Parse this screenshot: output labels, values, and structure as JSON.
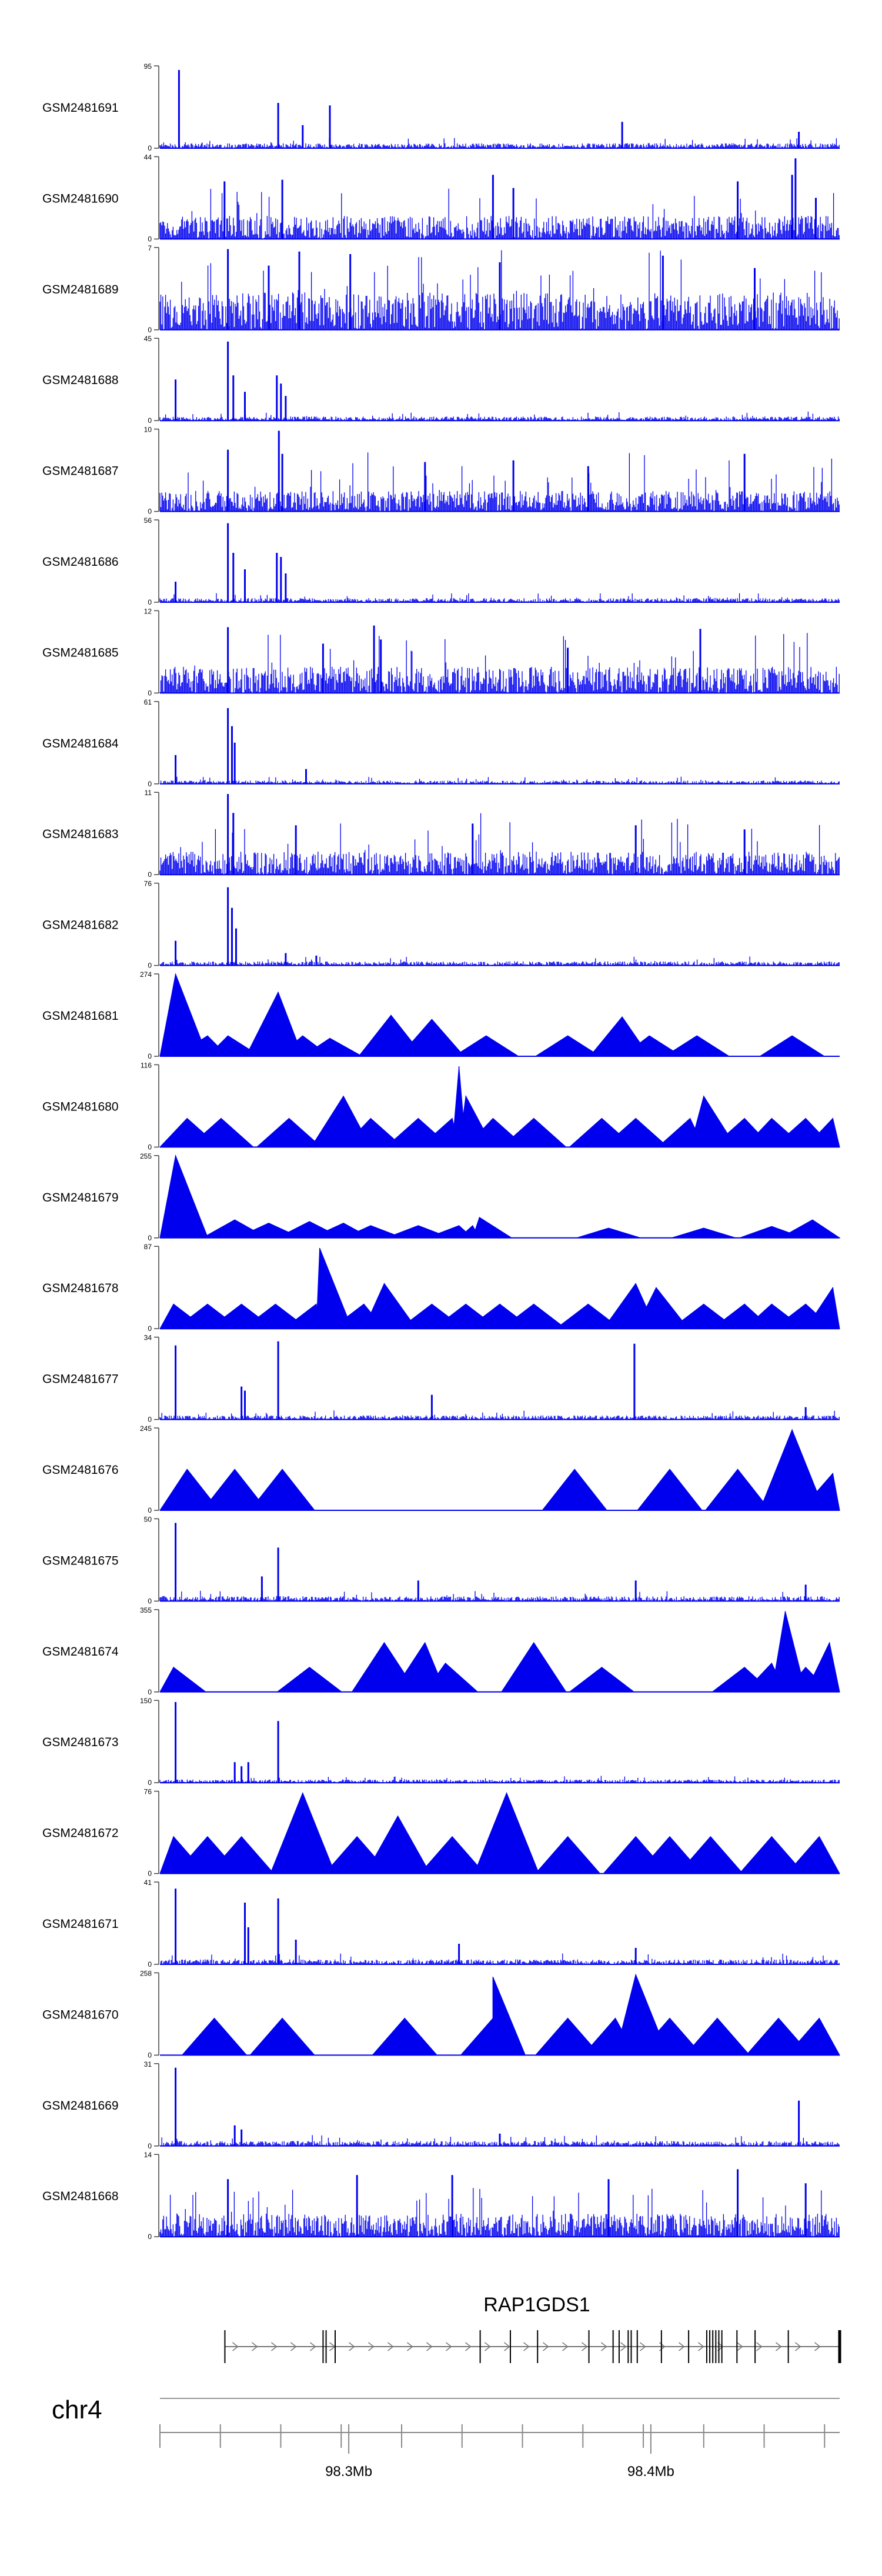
{
  "chart_data": {
    "type": "area",
    "title": "",
    "xlabel": "",
    "chromosome": "chr4",
    "gene": {
      "name": "RAP1GDS1",
      "strand": "+",
      "start_mb": 98.259,
      "end_mb": 98.463,
      "exons_mb": [
        98.259,
        98.2915,
        98.2925,
        98.2955,
        98.3435,
        98.3535,
        98.3625,
        98.3795,
        98.3875,
        98.3895,
        98.3925,
        98.3935,
        98.3955,
        98.4035,
        98.4125,
        98.4185,
        98.4195,
        98.4205,
        98.4215,
        98.4225,
        98.4235,
        98.4285,
        98.4345,
        98.4455,
        98.4625
      ]
    },
    "x_axis": {
      "range_mb": [
        98.2375,
        98.4625
      ],
      "ticks_mb": [
        98.2375,
        98.2575,
        98.2775,
        98.2975,
        98.3175,
        98.3375,
        98.3575,
        98.3775,
        98.3975,
        98.4175,
        98.4375,
        98.4575
      ],
      "labeled_ticks": [
        {
          "value": 98.3,
          "label": "98.3Mb"
        },
        {
          "value": 98.4,
          "label": "98.4Mb"
        }
      ]
    },
    "tracks": [
      {
        "name": "GSM2481691",
        "ylim": [
          0,
          95
        ],
        "ytick_labels": [
          "95",
          "0"
        ],
        "style": "dense",
        "density": 0.06,
        "peaks": [
          [
            0.028,
            0.95
          ],
          [
            0.174,
            0.55
          ],
          [
            0.21,
            0.28
          ],
          [
            0.25,
            0.52
          ],
          [
            0.68,
            0.32
          ],
          [
            0.94,
            0.2
          ]
        ]
      },
      {
        "name": "GSM2481690",
        "ylim": [
          0,
          44
        ],
        "ytick_labels": [
          "44",
          "0"
        ],
        "style": "sparse",
        "density": 0.28,
        "peaks": [
          [
            0.095,
            0.7
          ],
          [
            0.18,
            0.72
          ],
          [
            0.49,
            0.78
          ],
          [
            0.52,
            0.62
          ],
          [
            0.85,
            0.7
          ],
          [
            0.93,
            0.78
          ],
          [
            0.935,
            0.98
          ],
          [
            0.965,
            0.5
          ]
        ]
      },
      {
        "name": "GSM2481689",
        "ylim": [
          0,
          7
        ],
        "ytick_labels": [
          "7",
          "0"
        ],
        "style": "noisy",
        "density": 0.45,
        "peaks": [
          [
            0.1,
            0.98
          ],
          [
            0.205,
            0.95
          ],
          [
            0.28,
            0.92
          ],
          [
            0.16,
            0.78
          ],
          [
            0.5,
            0.82
          ],
          [
            0.74,
            0.9
          ],
          [
            0.875,
            0.75
          ]
        ]
      },
      {
        "name": "GSM2481688",
        "ylim": [
          0,
          45
        ],
        "ytick_labels": [
          "45",
          "0"
        ],
        "style": "dense",
        "density": 0.05,
        "peaks": [
          [
            0.023,
            0.5
          ],
          [
            0.1,
            0.96
          ],
          [
            0.108,
            0.55
          ],
          [
            0.125,
            0.35
          ],
          [
            0.172,
            0.55
          ],
          [
            0.178,
            0.45
          ],
          [
            0.185,
            0.3
          ]
        ]
      },
      {
        "name": "GSM2481687",
        "ylim": [
          0,
          10
        ],
        "ytick_labels": [
          "10",
          "0"
        ],
        "style": "noisy",
        "density": 0.25,
        "peaks": [
          [
            0.1,
            0.75
          ],
          [
            0.175,
            0.98
          ],
          [
            0.18,
            0.7
          ],
          [
            0.39,
            0.6
          ],
          [
            0.52,
            0.62
          ],
          [
            0.63,
            0.55
          ],
          [
            0.86,
            0.7
          ]
        ]
      },
      {
        "name": "GSM2481686",
        "ylim": [
          0,
          56
        ],
        "ytick_labels": [
          "56",
          "0"
        ],
        "style": "dense",
        "density": 0.05,
        "peaks": [
          [
            0.023,
            0.25
          ],
          [
            0.1,
            0.96
          ],
          [
            0.108,
            0.6
          ],
          [
            0.125,
            0.4
          ],
          [
            0.172,
            0.6
          ],
          [
            0.178,
            0.55
          ],
          [
            0.185,
            0.35
          ]
        ]
      },
      {
        "name": "GSM2481685",
        "ylim": [
          0,
          12
        ],
        "ytick_labels": [
          "12",
          "0"
        ],
        "style": "noisy",
        "density": 0.32,
        "peaks": [
          [
            0.1,
            0.8
          ],
          [
            0.315,
            0.82
          ],
          [
            0.325,
            0.65
          ],
          [
            0.795,
            0.78
          ],
          [
            0.6,
            0.55
          ],
          [
            0.24,
            0.6
          ]
        ]
      },
      {
        "name": "GSM2481684",
        "ylim": [
          0,
          61
        ],
        "ytick_labels": [
          "61",
          "0"
        ],
        "style": "dense",
        "density": 0.04,
        "peaks": [
          [
            0.023,
            0.35
          ],
          [
            0.1,
            0.92
          ],
          [
            0.106,
            0.7
          ],
          [
            0.11,
            0.5
          ],
          [
            0.215,
            0.18
          ]
        ]
      },
      {
        "name": "GSM2481683",
        "ylim": [
          0,
          11
        ],
        "ytick_labels": [
          "11",
          "0"
        ],
        "style": "noisy",
        "density": 0.28,
        "peaks": [
          [
            0.1,
            0.98
          ],
          [
            0.108,
            0.75
          ],
          [
            0.2,
            0.6
          ],
          [
            0.46,
            0.62
          ],
          [
            0.7,
            0.6
          ],
          [
            0.86,
            0.55
          ]
        ]
      },
      {
        "name": "GSM2481682",
        "ylim": [
          0,
          76
        ],
        "ytick_labels": [
          "76",
          "0"
        ],
        "style": "dense",
        "density": 0.05,
        "peaks": [
          [
            0.023,
            0.3
          ],
          [
            0.1,
            0.95
          ],
          [
            0.106,
            0.7
          ],
          [
            0.112,
            0.45
          ],
          [
            0.185,
            0.15
          ],
          [
            0.23,
            0.12
          ]
        ]
      },
      {
        "name": "GSM2481681",
        "ylim": [
          0,
          274
        ],
        "ytick_labels": [
          "274",
          "0"
        ],
        "style": "triangles",
        "density": 0,
        "peaks": [
          [
            0.023,
            1.0
          ],
          [
            0.174,
            0.78
          ],
          [
            0.07,
            0.25
          ],
          [
            0.1,
            0.25
          ],
          [
            0.21,
            0.25
          ],
          [
            0.25,
            0.22
          ],
          [
            0.34,
            0.5
          ],
          [
            0.4,
            0.45
          ],
          [
            0.48,
            0.25
          ],
          [
            0.6,
            0.25
          ],
          [
            0.68,
            0.48
          ],
          [
            0.72,
            0.25
          ],
          [
            0.79,
            0.25
          ],
          [
            0.93,
            0.25
          ]
        ]
      },
      {
        "name": "GSM2481680",
        "ylim": [
          0,
          116
        ],
        "ytick_labels": [
          "116",
          "0"
        ],
        "style": "triangles",
        "density": 0,
        "peaks": [
          [
            0.04,
            0.35
          ],
          [
            0.09,
            0.35
          ],
          [
            0.19,
            0.35
          ],
          [
            0.27,
            0.62
          ],
          [
            0.31,
            0.35
          ],
          [
            0.38,
            0.35
          ],
          [
            0.43,
            0.35
          ],
          [
            0.45,
            0.62
          ],
          [
            0.49,
            0.35
          ],
          [
            0.55,
            0.35
          ],
          [
            0.65,
            0.35
          ],
          [
            0.7,
            0.35
          ],
          [
            0.78,
            0.35
          ],
          [
            0.8,
            0.62
          ],
          [
            0.86,
            0.35
          ],
          [
            0.9,
            0.35
          ],
          [
            0.95,
            0.35
          ],
          [
            0.99,
            0.35
          ],
          [
            0.44,
            0.98
          ]
        ]
      },
      {
        "name": "GSM2481679",
        "ylim": [
          0,
          255
        ],
        "ytick_labels": [
          "255",
          "0"
        ],
        "style": "triangles",
        "density": 0,
        "peaks": [
          [
            0.023,
            1.0
          ],
          [
            0.11,
            0.22
          ],
          [
            0.16,
            0.18
          ],
          [
            0.22,
            0.2
          ],
          [
            0.27,
            0.18
          ],
          [
            0.31,
            0.15
          ],
          [
            0.38,
            0.15
          ],
          [
            0.44,
            0.15
          ],
          [
            0.46,
            0.15
          ],
          [
            0.47,
            0.25
          ],
          [
            0.66,
            0.12
          ],
          [
            0.8,
            0.12
          ],
          [
            0.9,
            0.14
          ],
          [
            0.96,
            0.22
          ]
        ]
      },
      {
        "name": "GSM2481678",
        "ylim": [
          0,
          87
        ],
        "ytick_labels": [
          "87",
          "0"
        ],
        "style": "triangles",
        "density": 0,
        "peaks": [
          [
            0.02,
            0.3
          ],
          [
            0.07,
            0.3
          ],
          [
            0.12,
            0.3
          ],
          [
            0.17,
            0.3
          ],
          [
            0.23,
            0.3
          ],
          [
            0.235,
            0.98
          ],
          [
            0.3,
            0.3
          ],
          [
            0.33,
            0.55
          ],
          [
            0.4,
            0.3
          ],
          [
            0.45,
            0.3
          ],
          [
            0.5,
            0.3
          ],
          [
            0.55,
            0.3
          ],
          [
            0.63,
            0.3
          ],
          [
            0.7,
            0.55
          ],
          [
            0.73,
            0.5
          ],
          [
            0.8,
            0.3
          ],
          [
            0.86,
            0.3
          ],
          [
            0.9,
            0.3
          ],
          [
            0.95,
            0.3
          ],
          [
            0.99,
            0.5
          ]
        ]
      },
      {
        "name": "GSM2481677",
        "ylim": [
          0,
          34
        ],
        "ytick_labels": [
          "34",
          "0"
        ],
        "style": "dense",
        "density": 0.05,
        "peaks": [
          [
            0.023,
            0.9
          ],
          [
            0.12,
            0.4
          ],
          [
            0.125,
            0.35
          ],
          [
            0.174,
            0.95
          ],
          [
            0.4,
            0.3
          ],
          [
            0.698,
            0.92
          ],
          [
            0.95,
            0.15
          ]
        ]
      },
      {
        "name": "GSM2481676",
        "ylim": [
          0,
          245
        ],
        "ytick_labels": [
          "245",
          "0"
        ],
        "style": "triangles",
        "density": 0,
        "peaks": [
          [
            0.04,
            0.5
          ],
          [
            0.11,
            0.5
          ],
          [
            0.18,
            0.5
          ],
          [
            0.61,
            0.5
          ],
          [
            0.75,
            0.5
          ],
          [
            0.85,
            0.5
          ],
          [
            0.93,
            0.98
          ],
          [
            0.99,
            0.45
          ]
        ]
      },
      {
        "name": "GSM2481675",
        "ylim": [
          0,
          50
        ],
        "ytick_labels": [
          "50",
          "0"
        ],
        "style": "dense",
        "density": 0.06,
        "peaks": [
          [
            0.023,
            0.95
          ],
          [
            0.174,
            0.65
          ],
          [
            0.15,
            0.3
          ],
          [
            0.38,
            0.25
          ],
          [
            0.7,
            0.25
          ],
          [
            0.95,
            0.2
          ]
        ]
      },
      {
        "name": "GSM2481674",
        "ylim": [
          0,
          355
        ],
        "ytick_labels": [
          "355",
          "0"
        ],
        "style": "triangles",
        "density": 0,
        "peaks": [
          [
            0.02,
            0.3
          ],
          [
            0.22,
            0.3
          ],
          [
            0.33,
            0.6
          ],
          [
            0.39,
            0.6
          ],
          [
            0.42,
            0.35
          ],
          [
            0.55,
            0.6
          ],
          [
            0.65,
            0.3
          ],
          [
            0.86,
            0.3
          ],
          [
            0.9,
            0.35
          ],
          [
            0.92,
            0.98
          ],
          [
            0.95,
            0.3
          ],
          [
            0.985,
            0.6
          ]
        ]
      },
      {
        "name": "GSM2481673",
        "ylim": [
          0,
          150
        ],
        "ytick_labels": [
          "150",
          "0"
        ],
        "style": "dense",
        "density": 0.04,
        "peaks": [
          [
            0.023,
            0.98
          ],
          [
            0.11,
            0.25
          ],
          [
            0.12,
            0.2
          ],
          [
            0.13,
            0.25
          ],
          [
            0.174,
            0.75
          ]
        ]
      },
      {
        "name": "GSM2481672",
        "ylim": [
          0,
          76
        ],
        "ytick_labels": [
          "76",
          "0"
        ],
        "style": "triangles",
        "density": 0,
        "peaks": [
          [
            0.02,
            0.45
          ],
          [
            0.07,
            0.45
          ],
          [
            0.12,
            0.45
          ],
          [
            0.21,
            0.98
          ],
          [
            0.29,
            0.45
          ],
          [
            0.35,
            0.7
          ],
          [
            0.43,
            0.45
          ],
          [
            0.51,
            0.98
          ],
          [
            0.6,
            0.45
          ],
          [
            0.7,
            0.45
          ],
          [
            0.75,
            0.45
          ],
          [
            0.81,
            0.45
          ],
          [
            0.9,
            0.45
          ],
          [
            0.97,
            0.45
          ]
        ]
      },
      {
        "name": "GSM2481671",
        "ylim": [
          0,
          41
        ],
        "ytick_labels": [
          "41",
          "0"
        ],
        "style": "dense",
        "density": 0.06,
        "peaks": [
          [
            0.023,
            0.92
          ],
          [
            0.125,
            0.75
          ],
          [
            0.13,
            0.45
          ],
          [
            0.174,
            0.8
          ],
          [
            0.2,
            0.3
          ],
          [
            0.44,
            0.25
          ],
          [
            0.7,
            0.2
          ]
        ]
      },
      {
        "name": "GSM2481670",
        "ylim": [
          0,
          258
        ],
        "ytick_labels": [
          "258",
          "0"
        ],
        "style": "triangles",
        "density": 0,
        "peaks": [
          [
            0.08,
            0.45
          ],
          [
            0.18,
            0.45
          ],
          [
            0.36,
            0.45
          ],
          [
            0.49,
            0.45
          ],
          [
            0.49,
            0.95
          ],
          [
            0.6,
            0.45
          ],
          [
            0.67,
            0.45
          ],
          [
            0.7,
            0.98
          ],
          [
            0.75,
            0.45
          ],
          [
            0.82,
            0.45
          ],
          [
            0.91,
            0.45
          ],
          [
            0.97,
            0.45
          ]
        ]
      },
      {
        "name": "GSM2481669",
        "ylim": [
          0,
          31
        ],
        "ytick_labels": [
          "31",
          "0"
        ],
        "style": "dense",
        "density": 0.06,
        "peaks": [
          [
            0.023,
            0.95
          ],
          [
            0.11,
            0.25
          ],
          [
            0.12,
            0.2
          ],
          [
            0.94,
            0.55
          ],
          [
            0.5,
            0.15
          ]
        ]
      },
      {
        "name": "GSM2481668",
        "ylim": [
          0,
          14
        ],
        "ytick_labels": [
          "14",
          "0"
        ],
        "style": "noisy",
        "density": 0.28,
        "peaks": [
          [
            0.1,
            0.7
          ],
          [
            0.29,
            0.75
          ],
          [
            0.43,
            0.75
          ],
          [
            0.66,
            0.7
          ],
          [
            0.85,
            0.82
          ],
          [
            0.95,
            0.65
          ]
        ]
      }
    ]
  }
}
